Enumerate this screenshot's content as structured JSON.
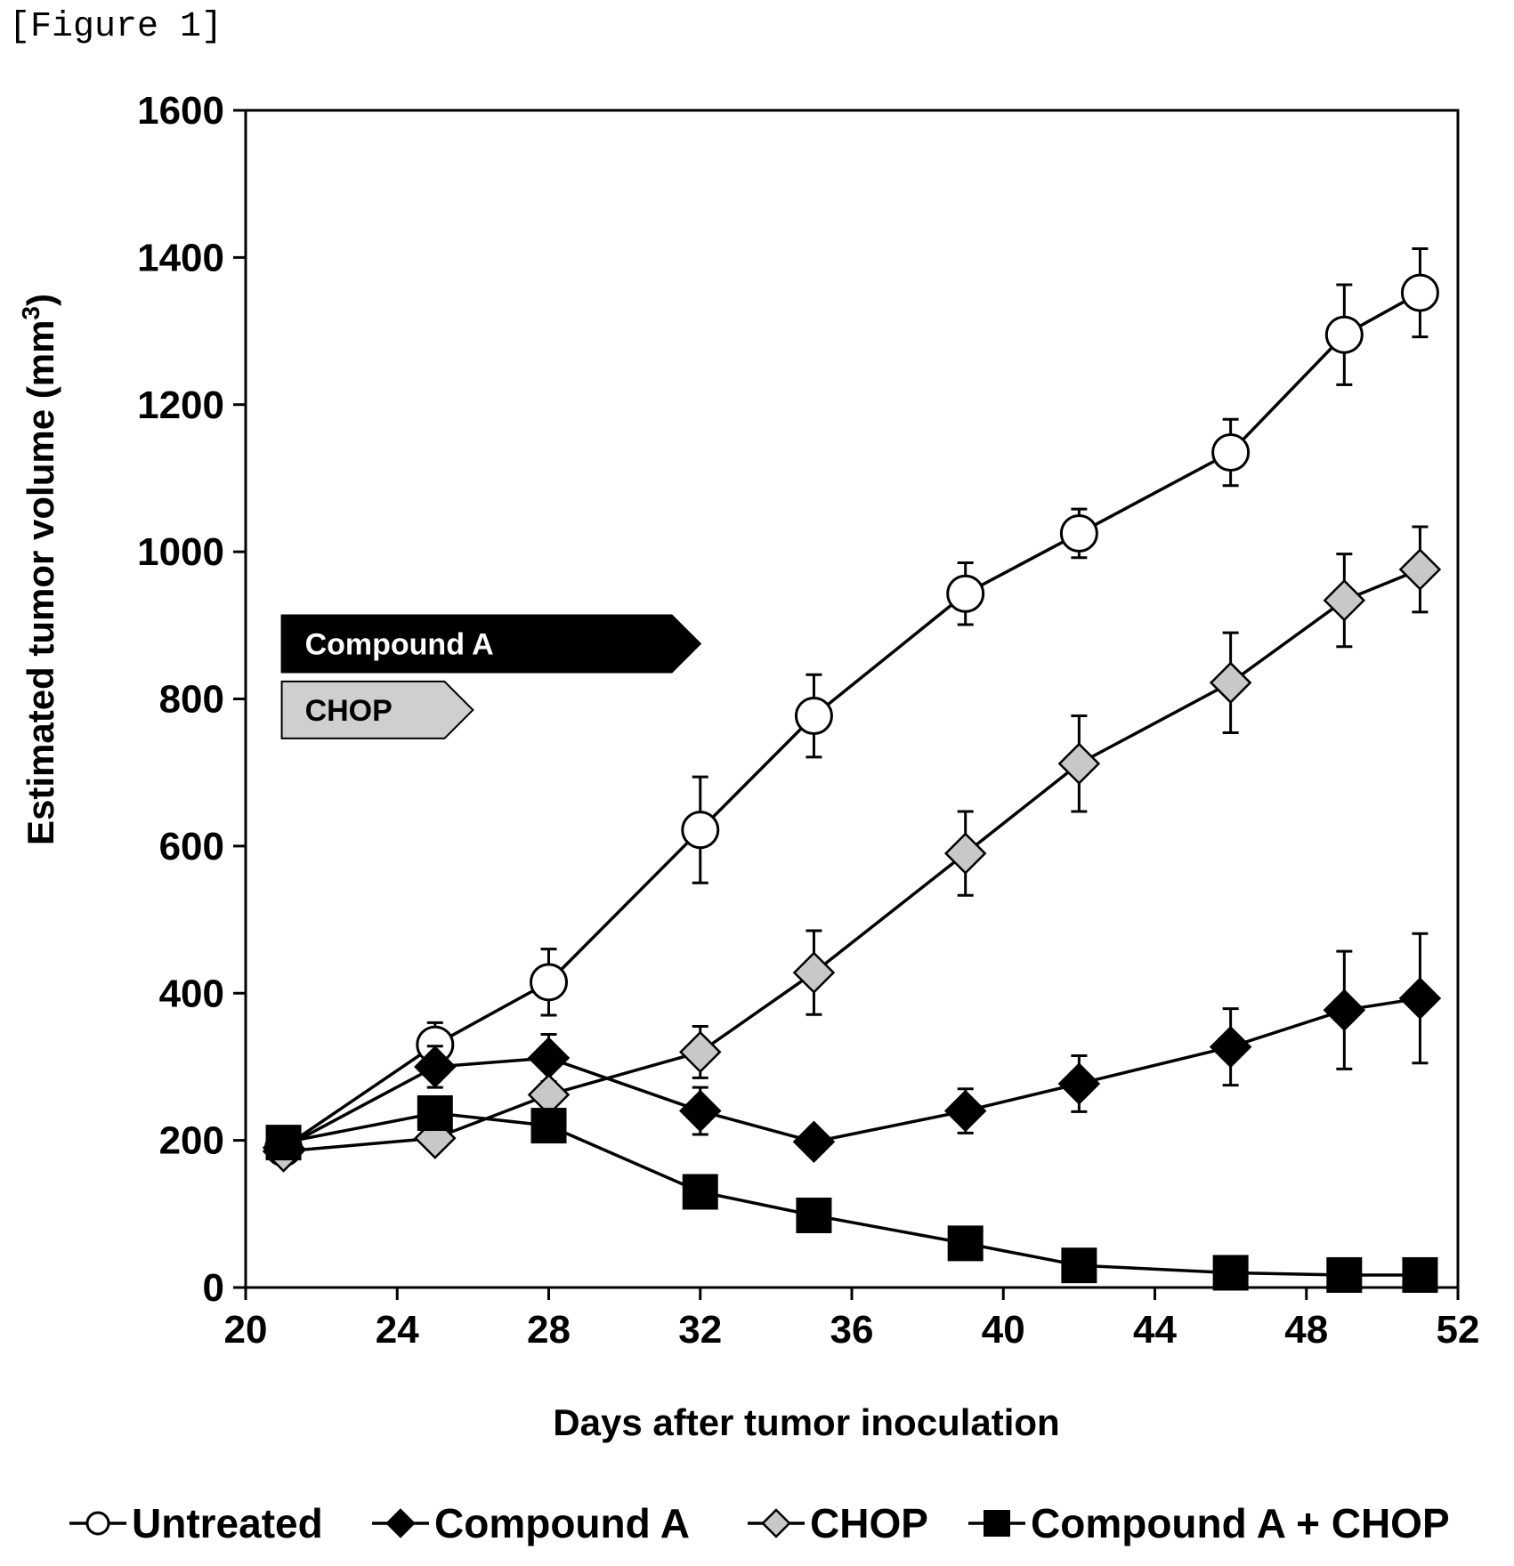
{
  "figure_label": "[Figure 1]",
  "chart_data": {
    "type": "line",
    "title": "",
    "xlabel": "Days after tumor inoculation",
    "ylabel": "Estimated tumor volume (mm",
    "ylabel_sup": "3",
    "ylabel_close": ")",
    "xlim": [
      20,
      52
    ],
    "ylim": [
      0,
      1600
    ],
    "xticks": [
      20,
      24,
      28,
      32,
      36,
      40,
      44,
      48,
      52
    ],
    "yticks": [
      0,
      200,
      400,
      600,
      800,
      1000,
      1200,
      1400,
      1600
    ],
    "grid": false,
    "legend_position": "bottom",
    "series": [
      {
        "name": "Untreated",
        "marker": "circle",
        "fill": "#ffffff",
        "points": [
          {
            "x": 21,
            "y": 190,
            "err": 0
          },
          {
            "x": 25,
            "y": 330,
            "err": 30
          },
          {
            "x": 28,
            "y": 415,
            "err": 45
          },
          {
            "x": 32,
            "y": 622,
            "err": 72
          },
          {
            "x": 35,
            "y": 777,
            "err": 56
          },
          {
            "x": 39,
            "y": 943,
            "err": 42
          },
          {
            "x": 42,
            "y": 1025,
            "err": 33
          },
          {
            "x": 46,
            "y": 1135,
            "err": 45
          },
          {
            "x": 49,
            "y": 1295,
            "err": 68
          },
          {
            "x": 51,
            "y": 1352,
            "err": 60
          }
        ]
      },
      {
        "name": "Compound A",
        "marker": "diamond",
        "fill": "#000000",
        "points": [
          {
            "x": 21,
            "y": 190,
            "err": 0
          },
          {
            "x": 25,
            "y": 300,
            "err": 28
          },
          {
            "x": 28,
            "y": 312,
            "err": 32
          },
          {
            "x": 32,
            "y": 240,
            "err": 32
          },
          {
            "x": 35,
            "y": 198,
            "err": 0
          },
          {
            "x": 39,
            "y": 240,
            "err": 30
          },
          {
            "x": 42,
            "y": 277,
            "err": 38
          },
          {
            "x": 46,
            "y": 327,
            "err": 52
          },
          {
            "x": 49,
            "y": 377,
            "err": 80
          },
          {
            "x": 51,
            "y": 393,
            "err": 88
          }
        ]
      },
      {
        "name": "CHOP",
        "marker": "diamond",
        "fill": "#c8c8c8",
        "points": [
          {
            "x": 21,
            "y": 185,
            "err": 0
          },
          {
            "x": 25,
            "y": 203,
            "err": 0
          },
          {
            "x": 28,
            "y": 262,
            "err": 0
          },
          {
            "x": 32,
            "y": 320,
            "err": 35
          },
          {
            "x": 35,
            "y": 428,
            "err": 57
          },
          {
            "x": 39,
            "y": 590,
            "err": 57
          },
          {
            "x": 42,
            "y": 712,
            "err": 65
          },
          {
            "x": 46,
            "y": 822,
            "err": 68
          },
          {
            "x": 49,
            "y": 934,
            "err": 63
          },
          {
            "x": 51,
            "y": 976,
            "err": 58
          }
        ]
      },
      {
        "name": "Compound A + CHOP",
        "marker": "square",
        "fill": "#000000",
        "points": [
          {
            "x": 21,
            "y": 197,
            "err": 0
          },
          {
            "x": 25,
            "y": 237,
            "err": 0
          },
          {
            "x": 28,
            "y": 220,
            "err": 0
          },
          {
            "x": 32,
            "y": 130,
            "err": 0
          },
          {
            "x": 35,
            "y": 98,
            "err": 0
          },
          {
            "x": 39,
            "y": 60,
            "err": 0
          },
          {
            "x": 42,
            "y": 30,
            "err": 0
          },
          {
            "x": 46,
            "y": 20,
            "err": 0
          },
          {
            "x": 49,
            "y": 17,
            "err": 0
          },
          {
            "x": 51,
            "y": 17,
            "err": 0
          }
        ]
      }
    ],
    "annotations": [
      {
        "label": "Compound A",
        "x_start": 21,
        "x_end": 32,
        "y": 875,
        "fill": "#000000",
        "text_color": "#ffffff"
      },
      {
        "label": "CHOP",
        "x_start": 21,
        "x_end": 26,
        "y": 785,
        "fill": "#cfcfcf",
        "text_color": "#000000"
      }
    ]
  }
}
